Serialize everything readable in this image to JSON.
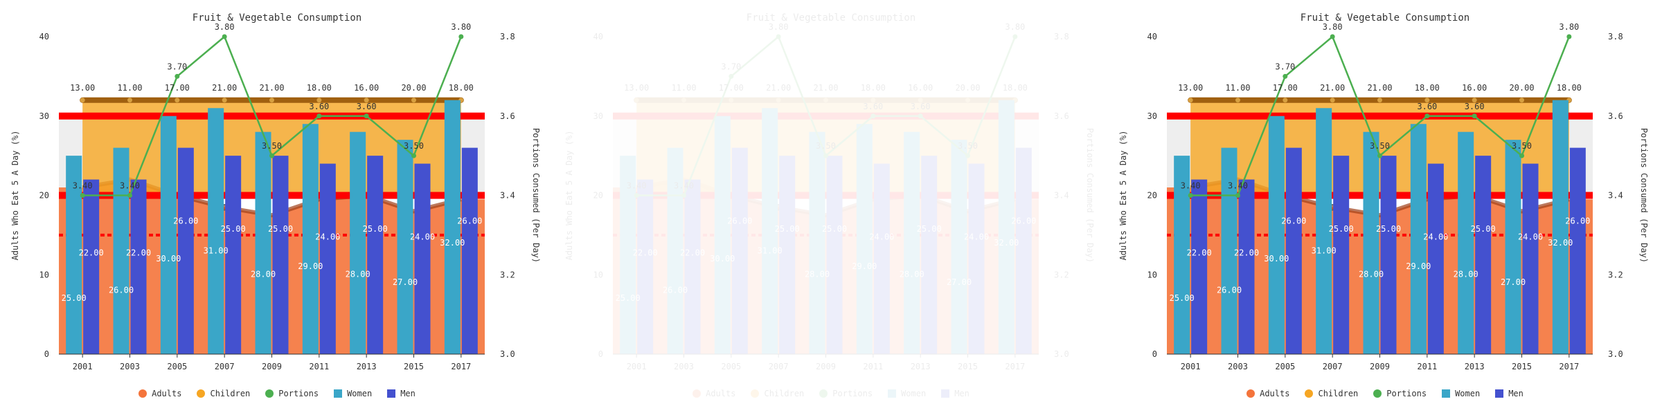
{
  "chart_data": {
    "type": "bar",
    "title": "Fruit & Vegetable Consumption",
    "xlabel": "",
    "ylabel": "Adults Who Eat 5 A Day (%)",
    "y2label": "Portions Consumed (Per Day)",
    "categories": [
      "2001",
      "2003",
      "2005",
      "2007",
      "2009",
      "2011",
      "2013",
      "2015",
      "2017"
    ],
    "ylim": [
      0,
      40
    ],
    "y2lim": [
      3.0,
      3.8
    ],
    "yticks": [
      "0",
      "10",
      "20",
      "30",
      "40"
    ],
    "y2ticks": [
      "3.0",
      "3.2",
      "3.4",
      "3.6",
      "3.8"
    ],
    "series": [
      {
        "name": "Adults",
        "type": "area",
        "color": "#f4743b",
        "values": [
          21,
          22,
          20,
          18.5,
          17.5,
          19.5,
          20,
          18,
          19.5
        ]
      },
      {
        "name": "Children",
        "type": "range-area",
        "color": "#f6a623",
        "values": [
          13.0,
          11.0,
          17.0,
          21.0,
          21.0,
          18.0,
          16.0,
          20.0,
          18.0
        ]
      },
      {
        "name": "Portions",
        "type": "line",
        "color": "#4caf50",
        "axis": "y2",
        "values": [
          3.4,
          3.4,
          3.7,
          3.8,
          3.5,
          3.6,
          3.6,
          3.5,
          3.8
        ]
      },
      {
        "name": "Women",
        "type": "bar",
        "color": "#3aa6c8",
        "values": [
          25.0,
          26.0,
          30.0,
          31.0,
          28.0,
          29.0,
          28.0,
          27.0,
          32.0
        ]
      },
      {
        "name": "Men",
        "type": "bar",
        "color": "#4451cf",
        "values": [
          22.0,
          22.0,
          26.0,
          25.0,
          25.0,
          24.0,
          25.0,
          24.0,
          26.0
        ]
      }
    ],
    "reference_lines": [
      {
        "value": 30,
        "color": "#ff0000",
        "style": "solid"
      },
      {
        "value": 20,
        "color": "#ff0000",
        "style": "solid"
      },
      {
        "value": 15,
        "color": "#ff0000",
        "style": "dashed"
      }
    ],
    "grid": false,
    "legend_position": "bottom"
  },
  "panels": [
    {
      "state": "normal"
    },
    {
      "state": "faded"
    },
    {
      "state": "normal"
    }
  ]
}
